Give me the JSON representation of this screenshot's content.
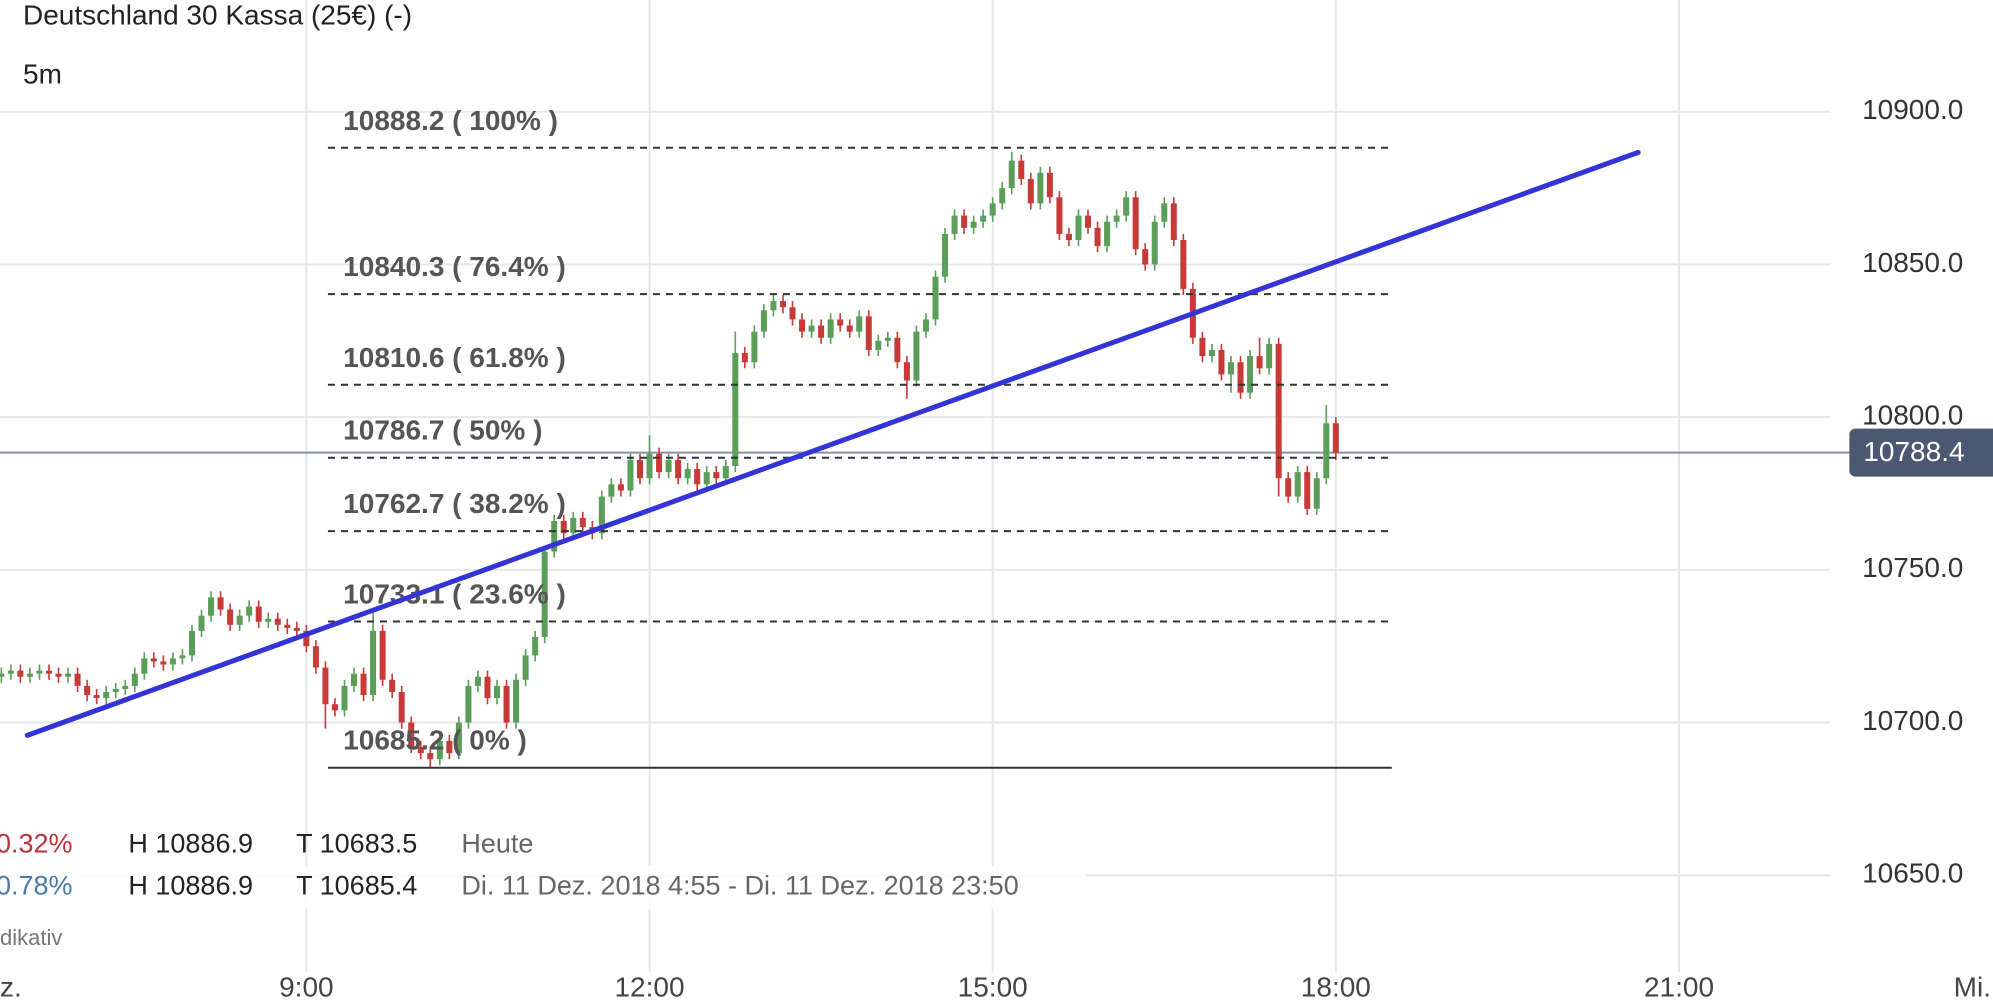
{
  "chart_data": {
    "type": "candlestick",
    "title": "Deutschland 30 Kassa (25€) (-)",
    "subtitle": "5m",
    "up_color": "#5a9e5a",
    "down_color": "#c63a37",
    "grid": true,
    "xlim": [
      379.3,
      1424.7
    ],
    "ylim": [
      10618.2,
      10936.6
    ],
    "xticks": [
      {
        "value": 360,
        "label": "z."
      },
      {
        "value": 540,
        "label": "9:00"
      },
      {
        "value": 720,
        "label": "12:00"
      },
      {
        "value": 900,
        "label": "15:00"
      },
      {
        "value": 1080,
        "label": "18:00"
      },
      {
        "value": 1260,
        "label": "21:00"
      },
      {
        "value": 1440,
        "label": "Mi."
      }
    ],
    "yticks": [
      {
        "value": 10650,
        "label": "10650.0"
      },
      {
        "value": 10700,
        "label": "10700.0"
      },
      {
        "value": 10750,
        "label": "10750.0"
      },
      {
        "value": 10800,
        "label": "10800.0"
      },
      {
        "value": 10850,
        "label": "10850.0"
      },
      {
        "value": 10900,
        "label": "10900.0"
      }
    ],
    "x": [
      380,
      385,
      390,
      395,
      400,
      405,
      410,
      415,
      420,
      425,
      430,
      435,
      440,
      445,
      450,
      455,
      460,
      465,
      470,
      475,
      480,
      485,
      490,
      495,
      500,
      505,
      510,
      515,
      520,
      525,
      530,
      535,
      540,
      545,
      550,
      555,
      560,
      565,
      570,
      575,
      580,
      585,
      590,
      595,
      600,
      605,
      610,
      615,
      620,
      625,
      630,
      635,
      640,
      645,
      650,
      655,
      660,
      665,
      670,
      675,
      680,
      685,
      690,
      695,
      700,
      705,
      710,
      715,
      720,
      725,
      730,
      735,
      740,
      745,
      750,
      755,
      760,
      765,
      770,
      775,
      780,
      785,
      790,
      795,
      800,
      805,
      810,
      815,
      820,
      825,
      830,
      835,
      840,
      845,
      850,
      855,
      860,
      865,
      870,
      875,
      880,
      885,
      890,
      895,
      900,
      905,
      910,
      915,
      920,
      925,
      930,
      935,
      940,
      945,
      950,
      955,
      960,
      965,
      970,
      975,
      980,
      985,
      990,
      995,
      1000,
      1005,
      1010,
      1015,
      1020,
      1025,
      1030,
      1035,
      1040,
      1045,
      1050,
      1055,
      1060,
      1065,
      1070,
      1075,
      1080
    ],
    "open": [
      10715,
      10716,
      10717,
      10715,
      10716,
      10717,
      10716,
      10715,
      10716,
      10712,
      10709,
      10708,
      10710,
      10711,
      10712,
      10716,
      10721,
      10720,
      10719,
      10721,
      10722,
      10730,
      10735,
      10741,
      10737,
      10732,
      10735,
      10738,
      10733,
      10734,
      10732,
      10731,
      10730,
      10725,
      10718,
      10706,
      10704,
      10712,
      10716,
      10709,
      10730,
      10714,
      10710,
      10700,
      10692,
      10690,
      10688,
      10694,
      10690,
      10700,
      10712,
      10715,
      10708,
      10712,
      10700,
      10714,
      10722,
      10728,
      10756,
      10766,
      10762,
      10767,
      10764,
      10762,
      10774,
      10778,
      10776,
      10786,
      10780,
      10788,
      10782,
      10786,
      10780,
      10783,
      10778,
      10782,
      10780,
      10784,
      10821,
      10818,
      10828,
      10835,
      10838,
      10836,
      10832,
      10828,
      10830,
      10826,
      10832,
      10830,
      10828,
      10833,
      10822,
      10825,
      10826,
      10818,
      10812,
      10828,
      10832,
      10846,
      10860,
      10866,
      10862,
      10864,
      10866,
      10870,
      10875,
      10884,
      10878,
      10870,
      10880,
      10872,
      10860,
      10858,
      10866,
      10862,
      10856,
      10864,
      10866,
      10872,
      10855,
      10850,
      10864,
      10870,
      10858,
      10842,
      10826,
      10820,
      10822,
      10814,
      10818,
      10808,
      10820,
      10816,
      10824,
      10780,
      10774,
      10782,
      10770,
      10780,
      10798
    ],
    "high": [
      10718,
      10719,
      10719,
      10718,
      10719,
      10719,
      10718,
      10718,
      10718,
      10714,
      10711,
      10712,
      10713,
      10714,
      10718,
      10723,
      10723,
      10722,
      10723,
      10724,
      10732,
      10737,
      10743,
      10743,
      10739,
      10737,
      10740,
      10740,
      10736,
      10736,
      10734,
      10733,
      10732,
      10727,
      10720,
      10708,
      10714,
      10718,
      10718,
      10736,
      10732,
      10716,
      10712,
      10702,
      10694,
      10692,
      10696,
      10696,
      10702,
      10714,
      10717,
      10717,
      10714,
      10714,
      10716,
      10724,
      10730,
      10758,
      10768,
      10768,
      10769,
      10769,
      10766,
      10776,
      10780,
      10780,
      10788,
      10788,
      10794,
      10790,
      10788,
      10788,
      10785,
      10785,
      10784,
      10784,
      10786,
      10828,
      10823,
      10830,
      10837,
      10840,
      10840,
      10838,
      10834,
      10832,
      10832,
      10834,
      10834,
      10832,
      10835,
      10835,
      10827,
      10828,
      10828,
      10820,
      10830,
      10834,
      10848,
      10862,
      10868,
      10868,
      10866,
      10868,
      10872,
      10877,
      10886.9,
      10886,
      10880,
      10882,
      10882,
      10874,
      10862,
      10868,
      10868,
      10864,
      10866,
      10868,
      10874,
      10874,
      10857,
      10866,
      10872,
      10872,
      10860,
      10844,
      10828,
      10824,
      10824,
      10820,
      10820,
      10822,
      10826,
      10826,
      10826,
      10782,
      10784,
      10784,
      10782,
      10804,
      10800
    ],
    "low": [
      10713,
      10714,
      10713,
      10713,
      10714,
      10714,
      10713,
      10713,
      10710,
      10707,
      10706,
      10706,
      10708,
      10709,
      10710,
      10714,
      10718,
      10717,
      10717,
      10719,
      10720,
      10728,
      10733,
      10735,
      10730,
      10730,
      10733,
      10731,
      10731,
      10730,
      10729,
      10728,
      10723,
      10716,
      10698,
      10702,
      10702,
      10710,
      10707,
      10707,
      10712,
      10708,
      10698,
      10690,
      10688,
      10685.4,
      10686,
      10688,
      10688,
      10698,
      10710,
      10706,
      10706,
      10698,
      10698,
      10712,
      10720,
      10726,
      10754,
      10760,
      10760,
      10762,
      10760,
      10760,
      10772,
      10774,
      10774,
      10778,
      10778,
      10780,
      10780,
      10778,
      10778,
      10776,
      10776,
      10778,
      10778,
      10782,
      10816,
      10816,
      10826,
      10833,
      10834,
      10830,
      10826,
      10826,
      10824,
      10824,
      10828,
      10826,
      10826,
      10820,
      10820,
      10823,
      10816,
      10806,
      10810,
      10826,
      10830,
      10844,
      10858,
      10860,
      10860,
      10862,
      10864,
      10868,
      10873,
      10876,
      10868,
      10868,
      10870,
      10858,
      10856,
      10856,
      10860,
      10854,
      10854,
      10862,
      10864,
      10853,
      10848,
      10848,
      10862,
      10856,
      10840,
      10824,
      10818,
      10818,
      10812,
      10808,
      10806,
      10806,
      10814,
      10814,
      10774,
      10772,
      10772,
      10768,
      10768,
      10778,
      10786
    ],
    "close": [
      10716,
      10717,
      10715,
      10716,
      10717,
      10716,
      10715,
      10716,
      10712,
      10709,
      10708,
      10710,
      10711,
      10712,
      10716,
      10721,
      10720,
      10719,
      10721,
      10722,
      10730,
      10735,
      10741,
      10737,
      10732,
      10735,
      10738,
      10733,
      10734,
      10732,
      10731,
      10730,
      10725,
      10718,
      10706,
      10704,
      10712,
      10716,
      10709,
      10730,
      10714,
      10710,
      10700,
      10692,
      10690,
      10688,
      10694,
      10690,
      10700,
      10712,
      10715,
      10708,
      10712,
      10700,
      10714,
      10722,
      10728,
      10756,
      10766,
      10762,
      10767,
      10764,
      10762,
      10774,
      10778,
      10776,
      10786,
      10780,
      10788,
      10782,
      10786,
      10780,
      10783,
      10778,
      10782,
      10780,
      10784,
      10821,
      10818,
      10828,
      10835,
      10838,
      10836,
      10832,
      10828,
      10830,
      10826,
      10832,
      10830,
      10828,
      10833,
      10822,
      10825,
      10826,
      10818,
      10812,
      10828,
      10832,
      10846,
      10860,
      10866,
      10862,
      10864,
      10866,
      10870,
      10875,
      10884,
      10878,
      10870,
      10880,
      10872,
      10860,
      10858,
      10866,
      10862,
      10856,
      10864,
      10866,
      10872,
      10855,
      10850,
      10864,
      10870,
      10858,
      10842,
      10826,
      10820,
      10822,
      10814,
      10818,
      10808,
      10820,
      10816,
      10824,
      10780,
      10774,
      10782,
      10770,
      10780,
      10798,
      10788.4
    ],
    "levels": [
      {
        "value": 10888.2,
        "label": "10888.2 ( 100% )",
        "dash": true
      },
      {
        "value": 10840.3,
        "label": "10840.3 ( 76.4% )",
        "dash": true
      },
      {
        "value": 10810.6,
        "label": "10810.6 ( 61.8% )",
        "dash": true
      },
      {
        "value": 10786.7,
        "label": "10786.7 ( 50% )",
        "dash": true
      },
      {
        "value": 10762.7,
        "label": "10762.7 ( 38.2% )",
        "dash": true
      },
      {
        "value": 10733.1,
        "label": "10733.1 ( 23.6% )",
        "dash": true
      },
      {
        "value": 10685.2,
        "label": "10685.2 ( 0% )",
        "dash": false
      }
    ],
    "trendline": {
      "x": [
        393.6,
        1238.6
      ],
      "y": [
        10695.8,
        10886.7
      ],
      "color": "#3434d6"
    },
    "last_price": 10788.4,
    "info": [
      {
        "change": "0.32%",
        "color": "#b8333b",
        "high": "H 10886.9",
        "low": "T 10683.5",
        "period": "Heute"
      },
      {
        "change": "0.78%",
        "color": "#4b79a8",
        "high": "H 10886.9",
        "low": "T 10685.4",
        "period": "Di. 11 Dez. 2018 4:55 - Di. 11 Dez. 2018 23:50"
      }
    ],
    "footnote": "dikativ"
  }
}
